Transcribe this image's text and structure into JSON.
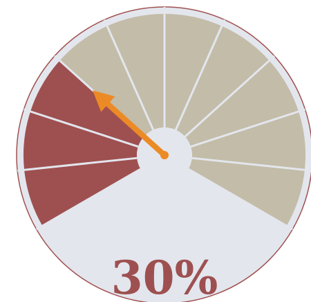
{
  "chart_data": {
    "type": "gauge",
    "value": 30,
    "readout": "30%",
    "min": 0,
    "max": 100,
    "segments_total": 10,
    "segments_filled": 3,
    "colors": {
      "filled": "#9e5050",
      "empty": "#c3bca8",
      "face": "#e3e6ed",
      "rim": "#a05050",
      "divider": "#e3e6ed",
      "needle": "#ec8a26",
      "readout": "#9e5050"
    }
  }
}
